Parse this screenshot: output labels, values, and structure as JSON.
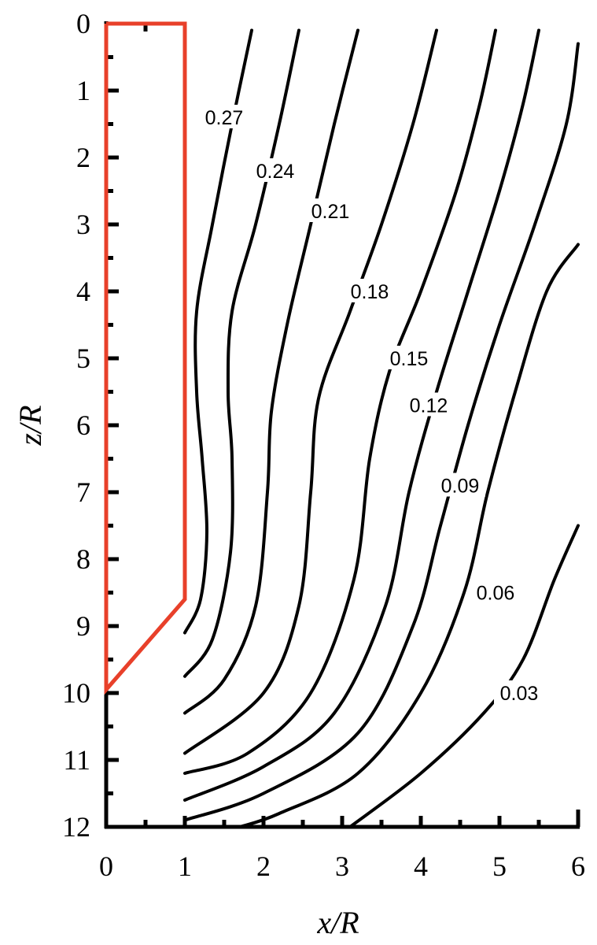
{
  "chart_data": {
    "type": "line",
    "title": "",
    "xlabel": "x/R",
    "ylabel": "z/R",
    "xlim": [
      0,
      6
    ],
    "ylim": [
      0,
      12
    ],
    "y_inverted": true,
    "grid": false,
    "legend": "none",
    "x_ticks": [
      "0",
      "1",
      "2",
      "3",
      "4",
      "5",
      "6"
    ],
    "y_ticks": [
      "0",
      "1",
      "2",
      "3",
      "4",
      "5",
      "6",
      "7",
      "8",
      "9",
      "10",
      "11",
      "12"
    ],
    "body_outline": {
      "color": "#e8402a",
      "points": [
        [
          0,
          0
        ],
        [
          1,
          0
        ],
        [
          1,
          8.6
        ],
        [
          0,
          9.95
        ],
        [
          0,
          0
        ]
      ]
    },
    "series": [
      {
        "label": "0.27",
        "label_at": [
          1.5,
          1.4
        ],
        "points": [
          [
            1.85,
            0.1
          ],
          [
            1.6,
            1.5
          ],
          [
            1.35,
            3.0
          ],
          [
            1.15,
            4.3
          ],
          [
            1.15,
            5.5
          ],
          [
            1.22,
            6.5
          ],
          [
            1.28,
            7.6
          ],
          [
            1.2,
            8.6
          ],
          [
            1.0,
            9.1
          ]
        ]
      },
      {
        "label": "0.24",
        "label_at": [
          2.15,
          2.2
        ],
        "points": [
          [
            2.45,
            0.1
          ],
          [
            2.2,
            1.5
          ],
          [
            1.9,
            3.0
          ],
          [
            1.6,
            4.3
          ],
          [
            1.55,
            5.5
          ],
          [
            1.6,
            6.5
          ],
          [
            1.58,
            7.9
          ],
          [
            1.35,
            9.2
          ],
          [
            1.0,
            9.75
          ]
        ]
      },
      {
        "label": "0.21",
        "label_at": [
          2.85,
          2.8
        ],
        "points": [
          [
            3.2,
            0.1
          ],
          [
            2.9,
            1.5
          ],
          [
            2.6,
            3.0
          ],
          [
            2.3,
            4.5
          ],
          [
            2.1,
            5.8
          ],
          [
            2.05,
            7.0
          ],
          [
            1.9,
            8.7
          ],
          [
            1.5,
            9.8
          ],
          [
            1.0,
            10.3
          ]
        ]
      },
      {
        "label": "0.18",
        "label_at": [
          3.35,
          4.0
        ],
        "points": [
          [
            4.2,
            0.1
          ],
          [
            3.9,
            1.5
          ],
          [
            3.5,
            3.0
          ],
          [
            3.1,
            4.3
          ],
          [
            2.7,
            5.6
          ],
          [
            2.6,
            7.0
          ],
          [
            2.45,
            8.7
          ],
          [
            2.0,
            10.0
          ],
          [
            1.0,
            10.9
          ]
        ]
      },
      {
        "label": "0.15",
        "label_at": [
          3.85,
          5.0
        ],
        "points": [
          [
            4.95,
            0.1
          ],
          [
            4.75,
            1.2
          ],
          [
            4.45,
            2.5
          ],
          [
            4.0,
            4.0
          ],
          [
            3.6,
            5.2
          ],
          [
            3.35,
            6.5
          ],
          [
            3.15,
            8.3
          ],
          [
            2.6,
            10.0
          ],
          [
            1.8,
            10.9
          ],
          [
            1.0,
            11.2
          ]
        ]
      },
      {
        "label": "0.12",
        "label_at": [
          4.1,
          5.7
        ],
        "points": [
          [
            5.5,
            0.1
          ],
          [
            5.3,
            1.2
          ],
          [
            5.0,
            2.5
          ],
          [
            4.6,
            4.0
          ],
          [
            4.2,
            5.5
          ],
          [
            3.85,
            7.0
          ],
          [
            3.55,
            8.7
          ],
          [
            2.9,
            10.3
          ],
          [
            2.0,
            11.1
          ],
          [
            1.0,
            11.6
          ]
        ]
      },
      {
        "label": "0.09",
        "label_at": [
          4.5,
          6.9
        ],
        "points": [
          [
            6.0,
            0.3
          ],
          [
            5.85,
            1.5
          ],
          [
            5.45,
            3.0
          ],
          [
            5.0,
            4.5
          ],
          [
            4.6,
            6.0
          ],
          [
            4.25,
            7.5
          ],
          [
            3.9,
            9.0
          ],
          [
            3.2,
            10.6
          ],
          [
            2.0,
            11.5
          ],
          [
            1.0,
            11.9
          ]
        ]
      },
      {
        "label": "0.06",
        "label_at": [
          4.95,
          8.5
        ],
        "points": [
          [
            6.0,
            3.3
          ],
          [
            5.6,
            4.0
          ],
          [
            5.2,
            5.5
          ],
          [
            4.85,
            7.0
          ],
          [
            4.55,
            8.5
          ],
          [
            4.0,
            10.0
          ],
          [
            3.2,
            11.2
          ],
          [
            2.2,
            11.8
          ],
          [
            1.7,
            12.0
          ]
        ]
      },
      {
        "label": "0.03",
        "label_at": [
          5.25,
          10.0
        ],
        "points": [
          [
            6.0,
            7.5
          ],
          [
            5.7,
            8.3
          ],
          [
            5.3,
            9.5
          ],
          [
            4.8,
            10.3
          ],
          [
            4.0,
            11.2
          ],
          [
            3.1,
            12.0
          ]
        ]
      }
    ]
  }
}
